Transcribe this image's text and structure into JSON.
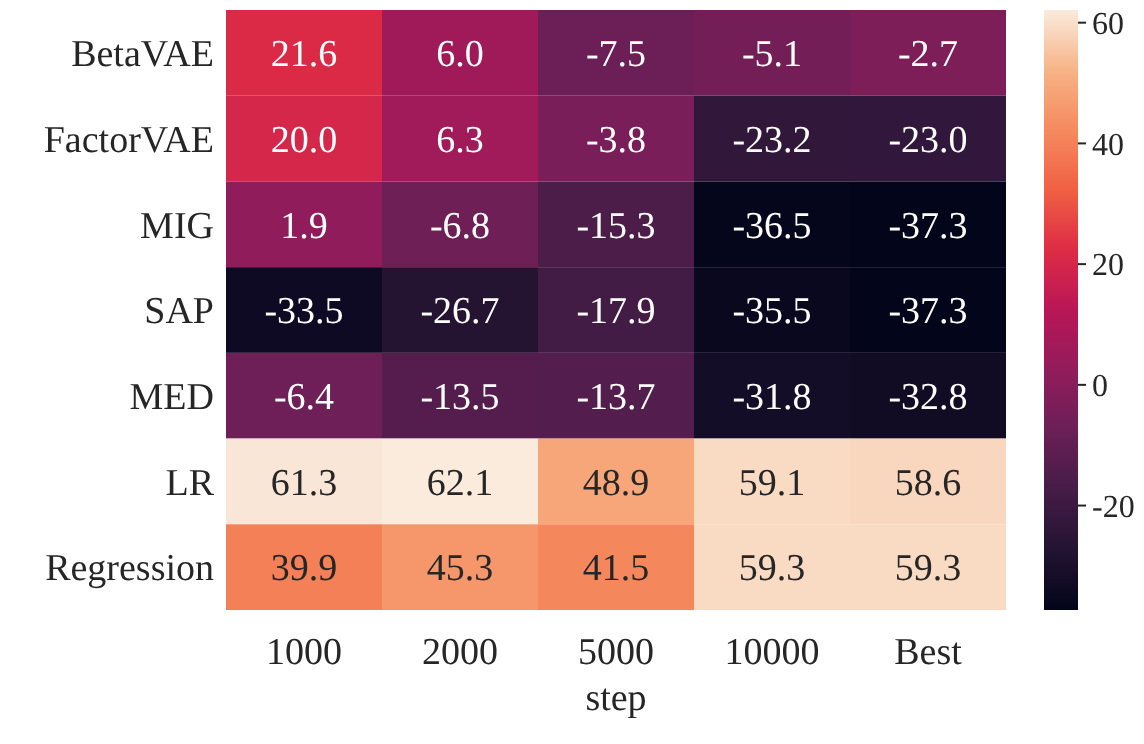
{
  "chart_data": {
    "type": "heatmap",
    "xlabel": "step",
    "categories": [
      "1000",
      "2000",
      "5000",
      "10000",
      "Best"
    ],
    "y_categories": [
      "BetaVAE",
      "FactorVAE",
      "MIG",
      "SAP",
      "MED",
      "LR",
      "Regression"
    ],
    "cells": [
      [
        21.6,
        6.0,
        -7.5,
        -5.1,
        -2.7
      ],
      [
        20.0,
        6.3,
        -3.8,
        -23.2,
        -23.0
      ],
      [
        1.9,
        -6.8,
        -15.3,
        -36.5,
        -37.3
      ],
      [
        -33.5,
        -26.7,
        -17.9,
        -35.5,
        -37.3
      ],
      [
        -6.4,
        -13.5,
        -13.7,
        -31.8,
        -32.8
      ],
      [
        61.3,
        62.1,
        48.9,
        59.1,
        58.6
      ],
      [
        39.9,
        45.3,
        41.5,
        59.3,
        59.3
      ]
    ],
    "cell_labels": [
      [
        "21.6",
        "6.0",
        "-7.5",
        "-5.1",
        "-2.7"
      ],
      [
        "20.0",
        "6.3",
        "-3.8",
        "-23.2",
        "-23.0"
      ],
      [
        "1.9",
        "-6.8",
        "-15.3",
        "-36.5",
        "-37.3"
      ],
      [
        "-33.5",
        "-26.7",
        "-17.9",
        "-35.5",
        "-37.3"
      ],
      [
        "-6.4",
        "-13.5",
        "-13.7",
        "-31.8",
        "-32.8"
      ],
      [
        "61.3",
        "62.1",
        "48.9",
        "59.1",
        "58.6"
      ],
      [
        "39.9",
        "45.3",
        "41.5",
        "59.3",
        "59.3"
      ]
    ],
    "data_labels": true,
    "clim": [
      -37.3,
      62.1
    ],
    "cticks": [
      -20,
      0,
      20,
      40,
      60
    ]
  }
}
